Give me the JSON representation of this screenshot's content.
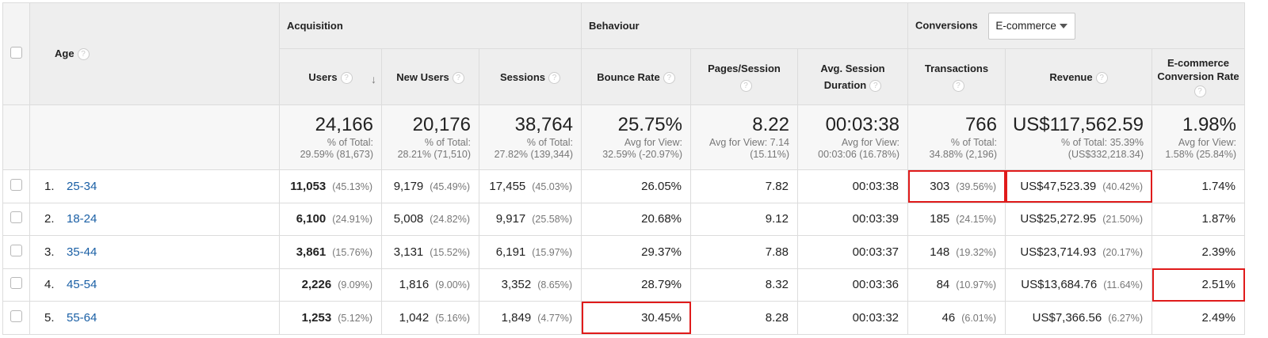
{
  "header": {
    "dimension_label": "Age",
    "group_acquisition": "Acquisition",
    "group_behaviour": "Behaviour",
    "group_conversions": "Conversions",
    "conversions_select_value": "E-commerce",
    "columns": {
      "users": "Users",
      "new_users": "New Users",
      "sessions": "Sessions",
      "bounce_rate": "Bounce Rate",
      "pages_session": "Pages/Session",
      "avg_duration": "Avg. Session Duration",
      "transactions": "Transactions",
      "revenue": "Revenue",
      "ecom_rate": "E-commerce Conversion Rate"
    }
  },
  "totals": {
    "users": {
      "value": "24,166",
      "sub1": "% of Total:",
      "sub2": "29.59% (81,673)"
    },
    "new_users": {
      "value": "20,176",
      "sub1": "% of Total:",
      "sub2": "28.21% (71,510)"
    },
    "sessions": {
      "value": "38,764",
      "sub1": "% of Total:",
      "sub2": "27.82% (139,344)"
    },
    "bounce_rate": {
      "value": "25.75%",
      "sub1": "Avg for View:",
      "sub2": "32.59% (-20.97%)"
    },
    "pages_session": {
      "value": "8.22",
      "sub1": "Avg for View: 7.14",
      "sub2": "(15.11%)"
    },
    "avg_duration": {
      "value": "00:03:38",
      "sub1": "Avg for View:",
      "sub2": "00:03:06 (16.78%)"
    },
    "transactions": {
      "value": "766",
      "sub1": "% of Total:",
      "sub2": "34.88% (2,196)"
    },
    "revenue": {
      "value": "US$117,562.59",
      "sub1": "% of Total: 35.39%",
      "sub2": "(US$332,218.34)"
    },
    "ecom_rate": {
      "value": "1.98%",
      "sub1": "Avg for View:",
      "sub2": "1.58% (25.84%)"
    }
  },
  "rows": [
    {
      "index": "1.",
      "age": "25-34",
      "users": "11,053",
      "users_pct": "(45.13%)",
      "new_users": "9,179",
      "new_users_pct": "(45.49%)",
      "sessions": "17,455",
      "sessions_pct": "(45.03%)",
      "bounce_rate": "26.05%",
      "pages_session": "7.82",
      "avg_duration": "00:03:38",
      "transactions": "303",
      "transactions_pct": "(39.56%)",
      "revenue": "US$47,523.39",
      "revenue_pct": "(40.42%)",
      "ecom_rate": "1.74%"
    },
    {
      "index": "2.",
      "age": "18-24",
      "users": "6,100",
      "users_pct": "(24.91%)",
      "new_users": "5,008",
      "new_users_pct": "(24.82%)",
      "sessions": "9,917",
      "sessions_pct": "(25.58%)",
      "bounce_rate": "20.68%",
      "pages_session": "9.12",
      "avg_duration": "00:03:39",
      "transactions": "185",
      "transactions_pct": "(24.15%)",
      "revenue": "US$25,272.95",
      "revenue_pct": "(21.50%)",
      "ecom_rate": "1.87%"
    },
    {
      "index": "3.",
      "age": "35-44",
      "users": "3,861",
      "users_pct": "(15.76%)",
      "new_users": "3,131",
      "new_users_pct": "(15.52%)",
      "sessions": "6,191",
      "sessions_pct": "(15.97%)",
      "bounce_rate": "29.37%",
      "pages_session": "7.88",
      "avg_duration": "00:03:37",
      "transactions": "148",
      "transactions_pct": "(19.32%)",
      "revenue": "US$23,714.93",
      "revenue_pct": "(20.17%)",
      "ecom_rate": "2.39%"
    },
    {
      "index": "4.",
      "age": "45-54",
      "users": "2,226",
      "users_pct": "(9.09%)",
      "new_users": "1,816",
      "new_users_pct": "(9.00%)",
      "sessions": "3,352",
      "sessions_pct": "(8.65%)",
      "bounce_rate": "28.79%",
      "pages_session": "8.32",
      "avg_duration": "00:03:36",
      "transactions": "84",
      "transactions_pct": "(10.97%)",
      "revenue": "US$13,684.76",
      "revenue_pct": "(11.64%)",
      "ecom_rate": "2.51%"
    },
    {
      "index": "5.",
      "age": "55-64",
      "users": "1,253",
      "users_pct": "(5.12%)",
      "new_users": "1,042",
      "new_users_pct": "(5.16%)",
      "sessions": "1,849",
      "sessions_pct": "(4.77%)",
      "bounce_rate": "30.45%",
      "pages_session": "8.28",
      "avg_duration": "00:03:32",
      "transactions": "46",
      "transactions_pct": "(6.01%)",
      "revenue": "US$7,366.56",
      "revenue_pct": "(6.27%)",
      "ecom_rate": "2.49%"
    }
  ],
  "highlight_color": "#e01b1b"
}
